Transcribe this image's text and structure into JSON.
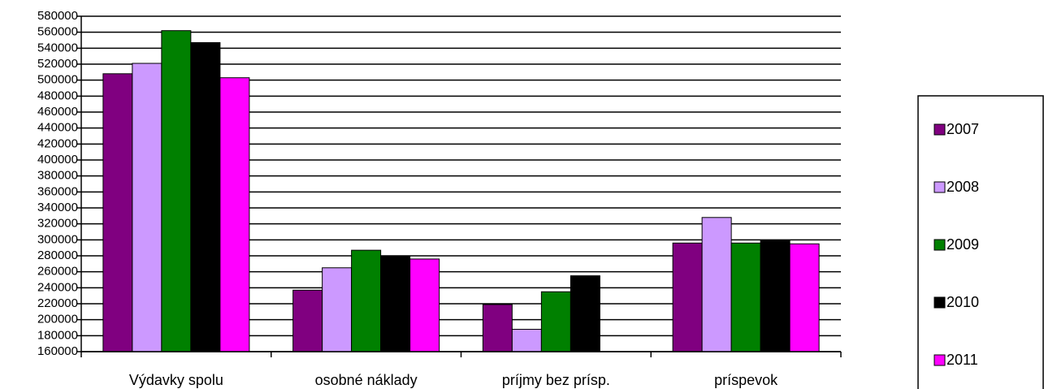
{
  "chart_data": {
    "type": "bar",
    "categories": [
      "Výdavky spolu",
      "osobné náklady",
      "príjmy bez prísp.",
      "príspevok"
    ],
    "series": [
      {
        "name": "2007",
        "color": "#800080",
        "values": [
          508000,
          237000,
          219000,
          296000
        ]
      },
      {
        "name": "2008",
        "color": "#cc99ff",
        "values": [
          521000,
          265000,
          188000,
          328000
        ]
      },
      {
        "name": "2009",
        "color": "#008000",
        "values": [
          562000,
          287000,
          235000,
          296000
        ]
      },
      {
        "name": "2010",
        "color": "#000000",
        "values": [
          547000,
          280000,
          255000,
          299000
        ]
      },
      {
        "name": "2011",
        "color": "#ff00ff",
        "values": [
          503000,
          276000,
          null,
          295000
        ]
      }
    ],
    "ylim": [
      160000,
      580000
    ],
    "yticks": [
      160000,
      180000,
      200000,
      220000,
      240000,
      260000,
      280000,
      300000,
      320000,
      340000,
      360000,
      380000,
      400000,
      420000,
      440000,
      460000,
      480000,
      500000,
      520000,
      540000,
      560000,
      580000
    ],
    "grid": true,
    "legend": "right"
  }
}
